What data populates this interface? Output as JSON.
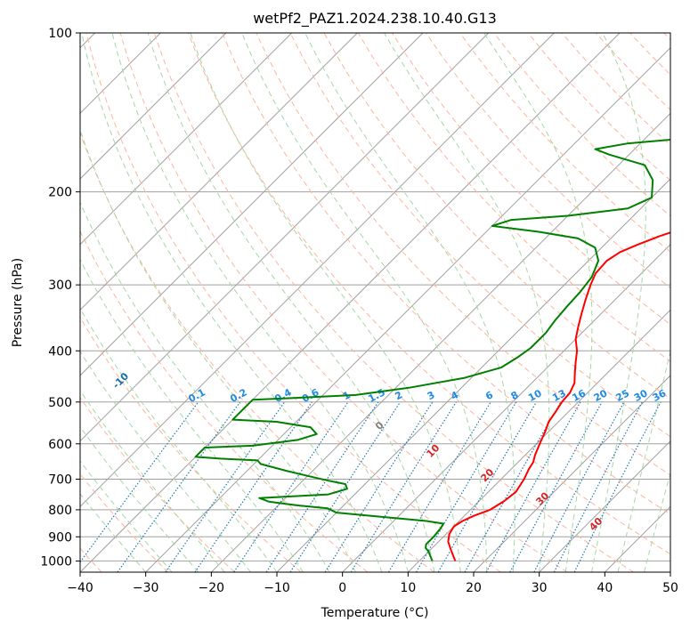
{
  "chart_data": {
    "type": "line",
    "title": "wetPf2_PAZ1.2024.238.10.40.G13",
    "xlabel": "Temperature (°C)",
    "ylabel": "Pressure (hPa)",
    "xlim": [
      -40,
      50
    ],
    "ylim": [
      1050,
      100
    ],
    "yscale": "log",
    "x_ticks": [
      "−40",
      "−30",
      "−20",
      "−10",
      "0",
      "10",
      "20",
      "30",
      "40",
      "50"
    ],
    "y_ticks": [
      {
        "p": 100,
        "label": "100"
      },
      {
        "p": 200,
        "label": "200"
      },
      {
        "p": 300,
        "label": "300"
      },
      {
        "p": 400,
        "label": "400"
      },
      {
        "p": 500,
        "label": "500"
      },
      {
        "p": 600,
        "label": "600"
      },
      {
        "p": 700,
        "label": "700"
      },
      {
        "p": 800,
        "label": "800"
      },
      {
        "p": 900,
        "label": "900"
      },
      {
        "p": 1000,
        "label": "1000"
      }
    ],
    "grid": true,
    "colors": {
      "temperature": "#ff0000",
      "dewpoint": "#008000",
      "isotherm": "#a0a0a0",
      "dry_adiabat": "#ffb49b",
      "moist_adiabat": "#a5d7a5",
      "mixing_ratio": "#1f77b4",
      "dry_adiabat_label": "#1a6fb0",
      "mixing_label": "#1e8ae6",
      "wetbulb_label": "#d62728"
    },
    "series": [
      {
        "key": "temperature",
        "points": [
          [
            15.5,
            1000
          ],
          [
            14.5,
            980
          ],
          [
            13,
            950
          ],
          [
            11.5,
            920
          ],
          [
            10.5,
            890
          ],
          [
            10,
            860
          ],
          [
            10.5,
            840
          ],
          [
            11.5,
            820
          ],
          [
            13,
            800
          ],
          [
            13.8,
            770
          ],
          [
            14.2,
            740
          ],
          [
            13.5,
            700
          ],
          [
            12.7,
            670
          ],
          [
            12.3,
            650
          ],
          [
            11.5,
            630
          ],
          [
            10.5,
            600
          ],
          [
            9.5,
            570
          ],
          [
            8.5,
            545
          ],
          [
            8,
            520
          ],
          [
            7.5,
            500
          ],
          [
            7.3,
            480
          ],
          [
            6.5,
            460
          ],
          [
            5,
            440
          ],
          [
            3.5,
            420
          ],
          [
            2,
            400
          ],
          [
            0,
            380
          ],
          [
            -1.5,
            360
          ],
          [
            -3,
            340
          ],
          [
            -4.5,
            320
          ],
          [
            -6,
            300
          ],
          [
            -7,
            285
          ],
          [
            -7.2,
            270
          ],
          [
            -6.5,
            260
          ],
          [
            -5,
            252
          ],
          [
            -3,
            243
          ],
          [
            -1,
            236
          ],
          [
            1,
            226
          ],
          [
            2,
            218
          ],
          [
            3,
            211
          ],
          [
            4.5,
            200
          ],
          [
            6.5,
            190
          ],
          [
            10,
            180
          ],
          [
            13.5,
            170
          ],
          [
            15,
            162
          ],
          [
            16,
            155
          ],
          [
            17,
            147
          ],
          [
            18,
            140
          ],
          [
            19.5,
            133
          ],
          [
            21,
            125
          ],
          [
            22,
            120
          ],
          [
            23,
            115
          ],
          [
            23.5,
            110
          ],
          [
            24.5,
            106
          ],
          [
            26,
            102
          ],
          [
            27,
            100
          ]
        ]
      },
      {
        "key": "dewpoint",
        "points": [
          [
            12,
            1000
          ],
          [
            11,
            980
          ],
          [
            10,
            960
          ],
          [
            9,
            945
          ],
          [
            8.5,
            930
          ],
          [
            8.5,
            900
          ],
          [
            8.3,
            870
          ],
          [
            8,
            850
          ],
          [
            5,
            840
          ],
          [
            0,
            830
          ],
          [
            -5,
            820
          ],
          [
            -10,
            810
          ],
          [
            -12,
            795
          ],
          [
            -17,
            785
          ],
          [
            -22,
            772
          ],
          [
            -24,
            760
          ],
          [
            -14,
            748
          ],
          [
            -12,
            730
          ],
          [
            -13,
            715
          ],
          [
            -16,
            705
          ],
          [
            -20,
            690
          ],
          [
            -24,
            675
          ],
          [
            -29,
            655
          ],
          [
            -30,
            645
          ],
          [
            -36,
            640
          ],
          [
            -40,
            635
          ],
          [
            -40,
            610
          ],
          [
            -33,
            605
          ],
          [
            -27,
            590
          ],
          [
            -25,
            575
          ],
          [
            -27,
            558
          ],
          [
            -33,
            545
          ],
          [
            -40,
            540
          ],
          [
            -40,
            495
          ],
          [
            -35,
            492
          ],
          [
            -25,
            485
          ],
          [
            -18,
            470
          ],
          [
            -11,
            450
          ],
          [
            -7,
            430
          ],
          [
            -6,
            410
          ],
          [
            -5.5,
            395
          ],
          [
            -5.5,
            370
          ],
          [
            -6,
            350
          ],
          [
            -6.3,
            330
          ],
          [
            -6.5,
            310
          ],
          [
            -7,
            290
          ],
          [
            -8.5,
            270
          ],
          [
            -11,
            255
          ],
          [
            -15,
            245
          ],
          [
            -22,
            238
          ],
          [
            -30,
            232
          ],
          [
            -28,
            226
          ],
          [
            -20,
            222
          ],
          [
            -12,
            215
          ],
          [
            -10,
            205
          ],
          [
            -12.5,
            190
          ],
          [
            -16,
            178
          ],
          [
            -23,
            170
          ],
          [
            -26,
            166
          ],
          [
            -22,
            162
          ],
          [
            -13,
            158
          ],
          [
            -11,
            155
          ],
          [
            -9,
            148
          ],
          [
            -7,
            138
          ],
          [
            -6,
            128
          ],
          [
            -5,
            121
          ],
          [
            -4.3,
            115
          ],
          [
            -4,
            108
          ],
          [
            -3.5,
            104
          ],
          [
            -2,
            101
          ],
          [
            0,
            100
          ]
        ]
      }
    ],
    "dry_adiabat_labels": [
      "-100",
      "-90",
      "-80",
      "-70",
      "-60",
      "-50",
      "-40",
      "-30",
      "-20",
      "-10"
    ],
    "mixing_ratio_labels": [
      "0.1",
      "0.2",
      "0.4",
      "0.6",
      "1",
      "1.5",
      "2",
      "3",
      "4",
      "6",
      "8",
      "10",
      "13",
      "16",
      "20",
      "25",
      "30",
      "36"
    ],
    "wetbulb_labels": [
      "0",
      "10",
      "20",
      "30",
      "40"
    ]
  }
}
